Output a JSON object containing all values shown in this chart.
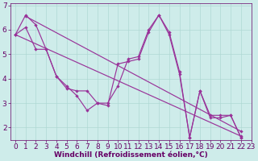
{
  "xlabel": "Windchill (Refroidissement éolien,°C)",
  "background_color": "#ceecea",
  "line_color": "#993399",
  "xlim": [
    -0.5,
    23
  ],
  "ylim": [
    1.5,
    7.1
  ],
  "yticks": [
    2,
    3,
    4,
    5,
    6,
    7
  ],
  "xticks": [
    0,
    1,
    2,
    3,
    4,
    5,
    6,
    7,
    8,
    9,
    10,
    11,
    12,
    13,
    14,
    15,
    16,
    17,
    18,
    19,
    20,
    21,
    22,
    23
  ],
  "line1_x": [
    0,
    1,
    2,
    3,
    4,
    5,
    6,
    7,
    8,
    9,
    10,
    11,
    12,
    13,
    14,
    15,
    16,
    17,
    18,
    19,
    20,
    21,
    22
  ],
  "line1_y": [
    5.8,
    6.6,
    6.2,
    5.2,
    4.1,
    3.7,
    3.3,
    2.7,
    3.0,
    3.0,
    3.7,
    4.8,
    4.9,
    6.0,
    6.6,
    5.9,
    4.3,
    1.6,
    3.5,
    2.5,
    2.5,
    2.5,
    1.6
  ],
  "line2_x": [
    0,
    1,
    2,
    3,
    4,
    5,
    6,
    7,
    8,
    9,
    10,
    11,
    12,
    13,
    14,
    15,
    16,
    17,
    18,
    19,
    20,
    21,
    22
  ],
  "line2_y": [
    5.8,
    6.1,
    5.2,
    5.2,
    4.1,
    3.6,
    3.5,
    3.5,
    3.0,
    2.9,
    4.6,
    4.7,
    4.8,
    5.9,
    6.6,
    5.8,
    4.2,
    1.6,
    3.5,
    2.4,
    2.4,
    2.5,
    1.6
  ],
  "trend1_x": [
    1,
    22
  ],
  "trend1_y": [
    6.55,
    1.85
  ],
  "trend2_x": [
    0,
    22
  ],
  "trend2_y": [
    5.8,
    1.65
  ],
  "grid_color": "#afd8d4",
  "font_color": "#660066",
  "font_size": 6.5,
  "marker_size": 2.2
}
